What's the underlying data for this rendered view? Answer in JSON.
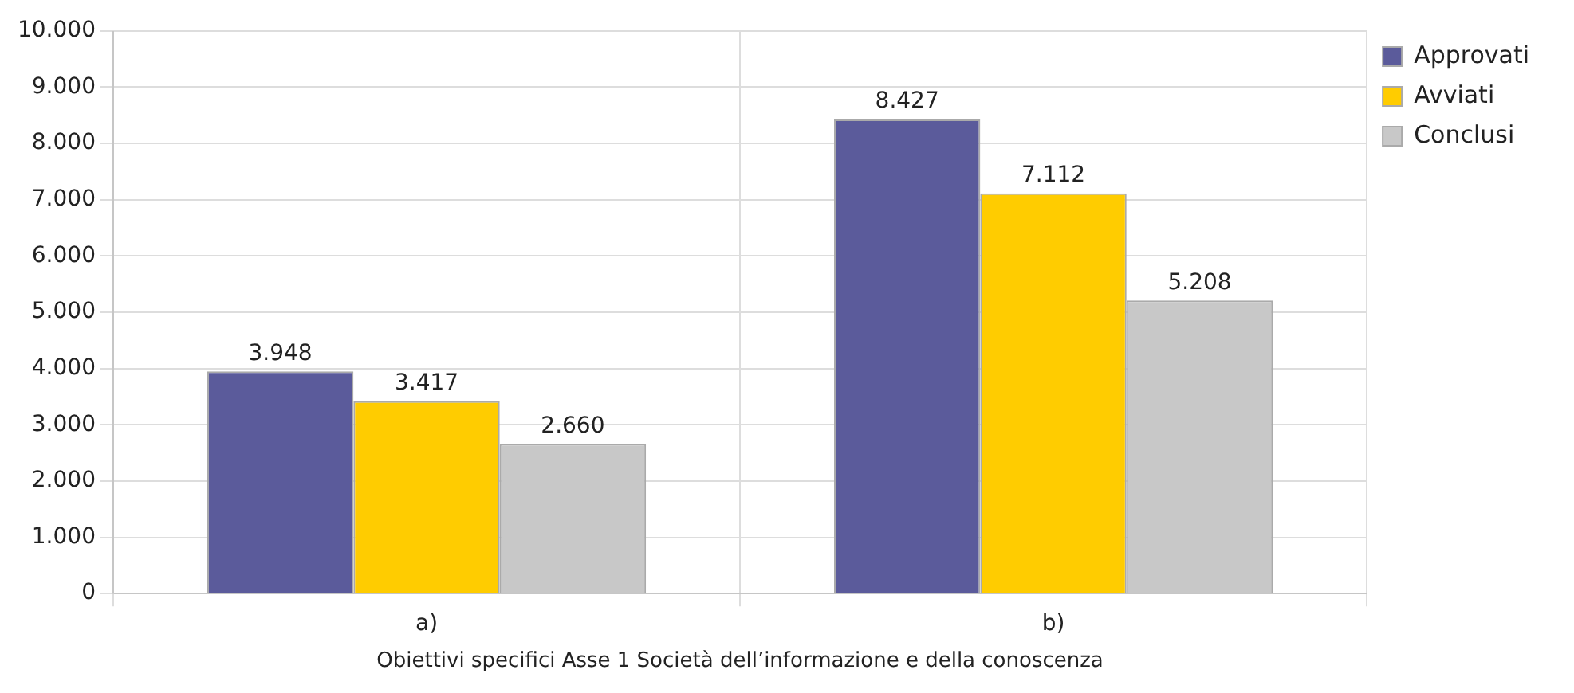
{
  "chart_data": {
    "type": "bar",
    "xlabel": "Obiettivi specifici Asse 1 Società dell’informazione e della conoscenza",
    "categories": [
      "a)",
      "b)"
    ],
    "series": [
      {
        "name": "Approvati",
        "color": "#5b5b9b",
        "values": [
          3948,
          8427
        ],
        "value_labels": [
          "3.948",
          "8.427"
        ]
      },
      {
        "name": "Avviati",
        "color": "#ffcc00",
        "values": [
          3417,
          7112
        ],
        "value_labels": [
          "3.417",
          "7.112"
        ]
      },
      {
        "name": "Conclusi",
        "color": "#c8c8c8",
        "values": [
          2660,
          5208
        ],
        "value_labels": [
          "2.660",
          "5.208"
        ]
      }
    ],
    "ylim": [
      0,
      10000
    ],
    "yticks": [
      {
        "value": 0,
        "label": "0"
      },
      {
        "value": 1000,
        "label": "1.000"
      },
      {
        "value": 2000,
        "label": "2.000"
      },
      {
        "value": 3000,
        "label": "3.000"
      },
      {
        "value": 4000,
        "label": "4.000"
      },
      {
        "value": 5000,
        "label": "5.000"
      },
      {
        "value": 6000,
        "label": "6.000"
      },
      {
        "value": 7000,
        "label": "7.000"
      },
      {
        "value": 8000,
        "label": "8.000"
      },
      {
        "value": 9000,
        "label": "9.000"
      },
      {
        "value": 10000,
        "label": "10.000"
      }
    ],
    "grid": true,
    "legend": "top right"
  }
}
